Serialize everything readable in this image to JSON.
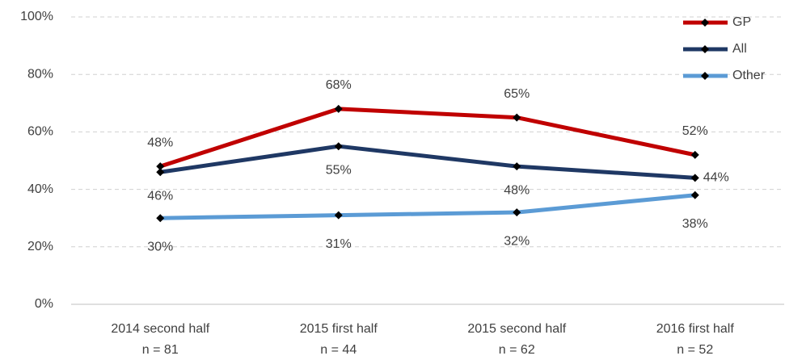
{
  "chart_data": {
    "type": "line",
    "categories": [
      "2014 second half",
      "2015 first half",
      "2015 second half",
      "2016 first half"
    ],
    "category_sublabels": [
      "n = 81",
      "n = 44",
      "n = 62",
      "n = 52"
    ],
    "series": [
      {
        "name": "GP",
        "color": "#c00000",
        "values": [
          48,
          68,
          65,
          52
        ],
        "value_labels": [
          "48%",
          "68%",
          "65%",
          "52%"
        ]
      },
      {
        "name": "All",
        "color": "#1f3864",
        "values": [
          46,
          55,
          48,
          44
        ],
        "value_labels": [
          "46%",
          "55%",
          "48%",
          "44%"
        ]
      },
      {
        "name": "Other",
        "color": "#5b9bd5",
        "values": [
          30,
          31,
          32,
          38
        ],
        "value_labels": [
          "30%",
          "31%",
          "32%",
          "38%"
        ]
      }
    ],
    "ylim": [
      0,
      100
    ],
    "yticks": [
      {
        "value": 0,
        "label": "0%"
      },
      {
        "value": 20,
        "label": "20%"
      },
      {
        "value": 40,
        "label": "40%"
      },
      {
        "value": 60,
        "label": "60%"
      },
      {
        "value": 80,
        "label": "80%"
      },
      {
        "value": 100,
        "label": "100%"
      }
    ],
    "grid": true,
    "legend": "top-right"
  }
}
